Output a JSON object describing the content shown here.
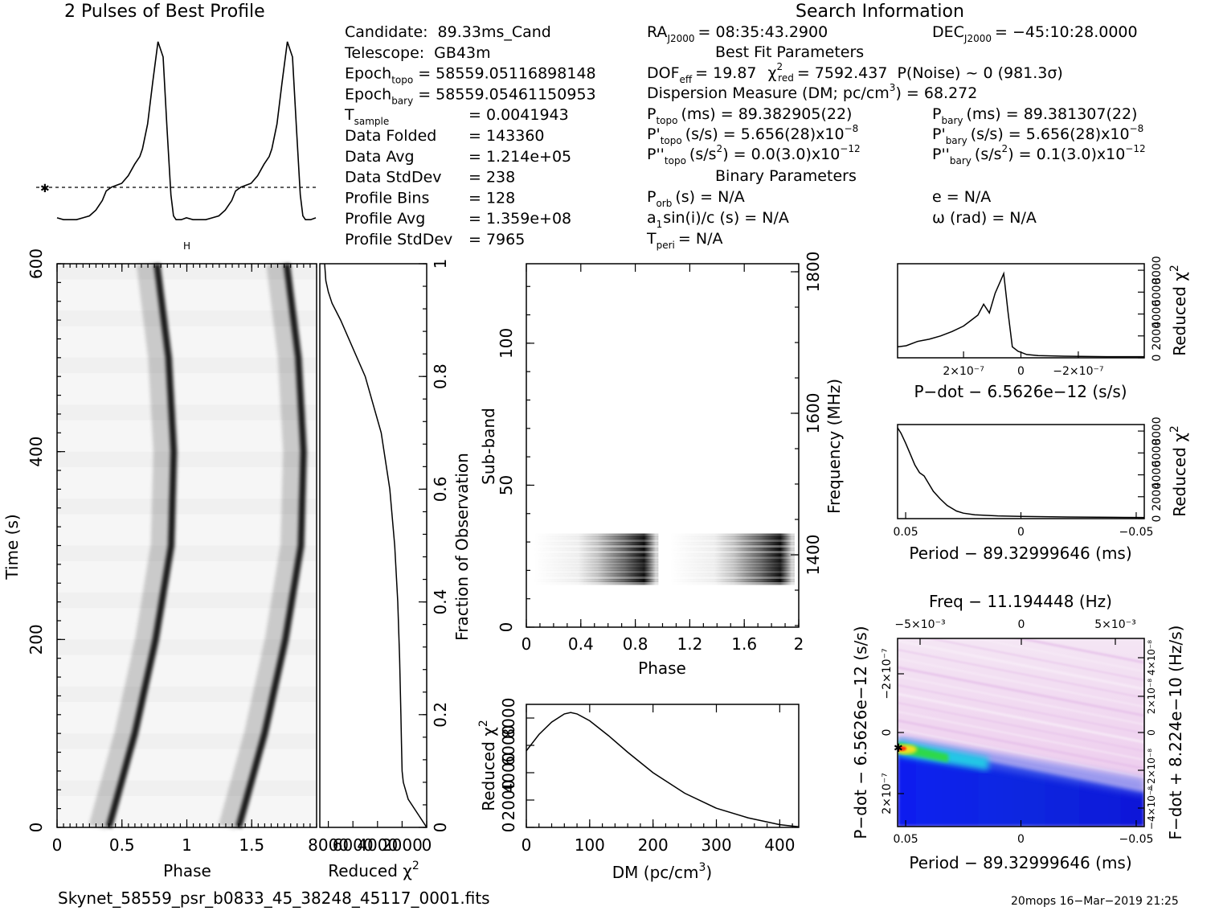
{
  "header": {
    "profile_title": "2 Pulses of Best Profile",
    "search_title": "Search Information",
    "best_fit_title": "Best Fit Parameters",
    "binary_title": "Binary Parameters",
    "error_marker": "H"
  },
  "candidate_info": [
    {
      "label": "Candidate:",
      "value": "89.33ms_Cand"
    },
    {
      "label": "Telescope:",
      "value": "GB43m"
    },
    {
      "label": "Epoch",
      "sub": "topo",
      "value": "= 58559.05116898148"
    },
    {
      "label": "Epoch",
      "sub": "bary",
      "value": "= 58559.05461150953"
    },
    {
      "label": "T",
      "sub": "sample",
      "value": "=   0.0041943"
    },
    {
      "label": "Data Folded",
      "value": "=   143360"
    },
    {
      "label": "Data Avg",
      "value": "=   1.214e+05"
    },
    {
      "label": "Data StdDev",
      "value": "=   238"
    },
    {
      "label": "Profile Bins",
      "value": "=   128"
    },
    {
      "label": "Profile Avg",
      "value": "=   1.359e+08"
    },
    {
      "label": "Profile StdDev",
      "value": "=   7965"
    }
  ],
  "search_info": {
    "ra_label": "RA",
    "ra_sub": "J2000",
    "ra_value": "= 08:35:43.2900",
    "dec_label": "DEC",
    "dec_sub": "J2000",
    "dec_value": "= −45:10:28.0000",
    "dof_label": "DOF",
    "dof_sub": "eff",
    "dof_value": "= 19.87",
    "chi_label": "χ",
    "chi_sup": "2",
    "chi_sub": "red",
    "chi_value": "= 7592.437",
    "pnoise": "P(Noise) ~ 0   (981.3σ)",
    "dm_line": "Dispersion Measure (DM; pc/cm",
    "dm_sup": "3",
    "dm_value": ") = 68.272",
    "ptopo_label": "P",
    "ptopo_sub": "topo",
    "ptopo_value": "(ms) =  89.382905(22)",
    "pbary_label": "P",
    "pbary_sub": "bary",
    "pbary_value": "(ms) =  89.381307(22)",
    "pdtopo_label": "P'",
    "pdtopo_sub": "topo",
    "pdtopo_value": "(s/s) =  5.656(28)x10",
    "pdtopo_exp": "−8",
    "pdbary_label": "P'",
    "pdbary_sub": "bary",
    "pdbary_value": "(s/s) =  5.656(28)x10",
    "pdbary_exp": "−8",
    "pddtopo_label": "P''",
    "pddtopo_sub": "topo",
    "pddtopo_value": "(s/s",
    "pddtopo_unitsup": "2",
    "pddtopo_value2": ") = 0.0(3.0)x10",
    "pddtopo_exp": "−12",
    "pddbary_label": "P''",
    "pddbary_sub": "bary",
    "pddbary_value": "(s/s",
    "pddbary_unitsup": "2",
    "pddbary_value2": ") =  0.1(3.0)x10",
    "pddbary_exp": "−12",
    "porb_label": "P",
    "porb_sub": "orb",
    "porb_value": "(s) = N/A",
    "e_line": "e = N/A",
    "a1_label": "a",
    "a1_sub": "1",
    "a1_value": "sin(i)/c (s) = N/A",
    "omega_line": "ω (rad) = N/A",
    "tperi_label": "T",
    "tperi_sub": "peri",
    "tperi_value": "= N/A"
  },
  "footer": {
    "filename": "Skynet_58559_psr_b0833_45_38248_45117_0001.fits",
    "stamp": "20mops 16−Mar−2019 21:25"
  },
  "chart_data": [
    {
      "type": "line",
      "id": "profile",
      "title": "2 Pulses of Best Profile",
      "x": [
        0,
        0.05,
        0.1,
        0.15,
        0.2,
        0.25,
        0.3,
        0.35,
        0.38,
        0.42,
        0.46,
        0.5,
        0.55,
        0.6,
        0.64,
        0.66,
        0.7,
        0.74,
        0.78,
        0.82,
        0.85,
        0.88,
        0.9,
        0.92,
        0.96,
        1.0,
        1.05,
        1.1,
        1.15,
        1.2,
        1.25,
        1.3,
        1.35,
        1.38,
        1.42,
        1.46,
        1.5,
        1.55,
        1.6,
        1.64,
        1.66,
        1.7,
        1.74,
        1.78,
        1.82,
        1.85,
        1.88,
        1.9,
        1.92,
        1.96,
        2.0
      ],
      "values": [
        0.03,
        0.02,
        0.02,
        0.02,
        0.03,
        0.04,
        0.07,
        0.12,
        0.17,
        0.19,
        0.2,
        0.21,
        0.25,
        0.31,
        0.35,
        0.39,
        0.52,
        0.74,
        0.95,
        0.87,
        0.5,
        0.15,
        0.04,
        0.02,
        0.02,
        0.03,
        0.02,
        0.02,
        0.02,
        0.03,
        0.04,
        0.07,
        0.12,
        0.17,
        0.19,
        0.2,
        0.21,
        0.25,
        0.31,
        0.35,
        0.39,
        0.52,
        0.74,
        0.95,
        0.87,
        0.5,
        0.15,
        0.04,
        0.02,
        0.02,
        0.03
      ],
      "mean_line": 0.32
    },
    {
      "type": "heatmap",
      "id": "time-phase",
      "xlabel": "Phase",
      "ylabel": "Time (s)",
      "xlim": [
        0,
        2
      ],
      "ylim": [
        0,
        600
      ],
      "xticks": [
        "0",
        "0.5",
        "1",
        "1.5"
      ],
      "yticks": [
        "0",
        "200",
        "400",
        "600"
      ],
      "pulse_track": {
        "t": [
          0,
          100,
          200,
          300,
          400,
          500,
          600
        ],
        "phase": [
          0.4,
          0.6,
          0.76,
          0.88,
          0.9,
          0.86,
          0.77
        ]
      }
    },
    {
      "type": "line",
      "id": "time-chi2",
      "xlabel": "Reduced χ",
      "xlabel_sup": "2",
      "ylabel": "Fraction of Observation",
      "xticks": [
        "8000",
        "6000",
        "4000",
        "2000",
        "0"
      ],
      "yticks": [
        "0",
        "0.2",
        "0.4",
        "0.6",
        "0.8",
        "1"
      ],
      "fraction": [
        0,
        0.02,
        0.05,
        0.08,
        0.1,
        0.15,
        0.2,
        0.3,
        0.4,
        0.5,
        0.6,
        0.7,
        0.8,
        0.9,
        0.93,
        0.95,
        0.97,
        1.0
      ],
      "chi2": [
        0,
        600,
        1500,
        1900,
        2000,
        2050,
        2100,
        2200,
        2350,
        2600,
        3000,
        3700,
        5000,
        7000,
        7700,
        8000,
        8200,
        8300
      ]
    },
    {
      "type": "heatmap",
      "id": "subband-phase",
      "xlabel": "Phase",
      "ylabel": "Sub-band",
      "y2label": "Frequency (MHz)",
      "xticks": [
        "0",
        "0.4",
        "0.8",
        "1.2",
        "1.6",
        "2"
      ],
      "yticks": [
        "0",
        "50",
        "100"
      ],
      "y2ticks": [
        "1400",
        "1600",
        "1800"
      ],
      "signal_subbands": [
        15,
        33
      ]
    },
    {
      "type": "line",
      "id": "dm-chi2",
      "xlabel": "DM (pc/cm",
      "xlabel_sup": "3",
      "ylabel": "Reduced χ",
      "ylabel_sup": "2",
      "xlim": [
        0,
        430
      ],
      "ylim": [
        0,
        9000
      ],
      "xticks": [
        "0",
        "100",
        "200",
        "300",
        "400"
      ],
      "yticks": [
        "0",
        "2000",
        "4000",
        "6000",
        "8000"
      ],
      "x": [
        0,
        20,
        40,
        60,
        70,
        80,
        100,
        130,
        160,
        200,
        250,
        300,
        350,
        400,
        430
      ],
      "values": [
        5600,
        6800,
        7700,
        8300,
        8400,
        8300,
        7800,
        6700,
        5500,
        4000,
        2500,
        1400,
        700,
        200,
        50
      ]
    },
    {
      "type": "line",
      "id": "pdot-chi2",
      "xlabel": "P−dot − 6.5626e−12 (s/s)",
      "ylabel": "Reduced χ",
      "ylabel_sup": "2",
      "xticks": [
        "2×10⁻⁷",
        "0",
        "−2×10⁻⁷"
      ],
      "yticks": [
        "0",
        "2000",
        "4000",
        "6000",
        "8000"
      ],
      "x": [
        4.3e-07,
        4e-07,
        3.6e-07,
        3.2e-07,
        2.8e-07,
        2.4e-07,
        2e-07,
        1.8e-07,
        1.5e-07,
        1.3e-07,
        1.1e-07,
        9e-08,
        6e-08,
        4.5e-08,
        3e-08,
        1e-08,
        -2e-08,
        -6e-08,
        -1.5e-07,
        -3e-07,
        -4.3e-07
      ],
      "values": [
        1000,
        1100,
        1500,
        1700,
        2000,
        2400,
        2900,
        3300,
        3900,
        4900,
        4100,
        5900,
        7700,
        4200,
        1000,
        600,
        300,
        200,
        150,
        100,
        100
      ]
    },
    {
      "type": "line",
      "id": "period-chi2",
      "xlabel": "Period − 89.32999646 (ms)",
      "ylabel": "Reduced χ",
      "ylabel_sup": "2",
      "xticks": [
        "0.05",
        "0",
        "−0.05"
      ],
      "yticks": [
        "0",
        "2000",
        "4000",
        "6000",
        "8000"
      ],
      "x": [
        0.0535,
        0.052,
        0.05,
        0.048,
        0.046,
        0.044,
        0.042,
        0.04,
        0.038,
        0.035,
        0.032,
        0.028,
        0.025,
        0.02,
        0.01,
        0.0,
        -0.02,
        -0.04,
        -0.0535
      ],
      "values": [
        8300,
        7800,
        6900,
        5900,
        4900,
        4200,
        3900,
        3200,
        2500,
        1800,
        1200,
        700,
        500,
        350,
        250,
        200,
        150,
        120,
        100
      ]
    },
    {
      "type": "heatmap",
      "id": "period-pdot",
      "title": "Freq − 11.194448 (Hz)",
      "xlabel": "Period − 89.32999646 (ms)",
      "ylabel": "P−dot − 6.5626e−12 (s/s)",
      "y2label": "F−dot + 8.224e−10 (Hz/s)",
      "xticks": [
        "0.05",
        "0",
        "−0.05"
      ],
      "x2ticks": [
        "−5×10⁻³",
        "0",
        "5×10⁻³"
      ],
      "yticks": [
        "−2×10⁻⁷",
        "0",
        "2×10⁻⁷"
      ],
      "y2ticks": [
        "4×10⁻⁸",
        "2×10⁻⁸",
        "0",
        "−2×10⁻⁸",
        "−4×10⁻⁸"
      ]
    }
  ]
}
